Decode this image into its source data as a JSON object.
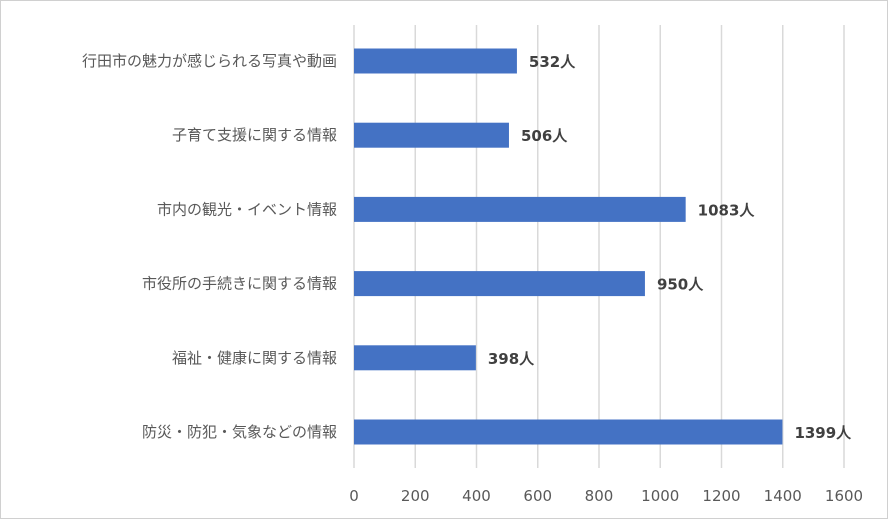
{
  "chart_data": {
    "type": "bar",
    "orientation": "horizontal",
    "title": "",
    "xlabel": "",
    "ylabel": "",
    "categories": [
      "行田市の魅力が感じられる写真や動画",
      "子育て支援に関する情報",
      "市内の観光・イベント情報",
      "市役所の手続きに関する情報",
      "福祉・健康に関する情報",
      "防災・防犯・気象などの情報"
    ],
    "values": [
      532,
      506,
      1083,
      950,
      398,
      1399
    ],
    "data_labels": [
      "532人",
      "506人",
      "1083人",
      "950人",
      "398人",
      "1399人"
    ],
    "xlim": [
      0,
      1600
    ],
    "ticks": [
      0,
      200,
      400,
      600,
      800,
      1000,
      1200,
      1400,
      1600
    ],
    "tick_labels": [
      "0",
      "200",
      "400",
      "600",
      "800",
      "1000",
      "1200",
      "1400",
      "1600"
    ],
    "grid": "vertical",
    "legend": "none",
    "bar_color": "#4472C4",
    "gridline_color": "#D9D9D9",
    "text_color": "#595959"
  }
}
